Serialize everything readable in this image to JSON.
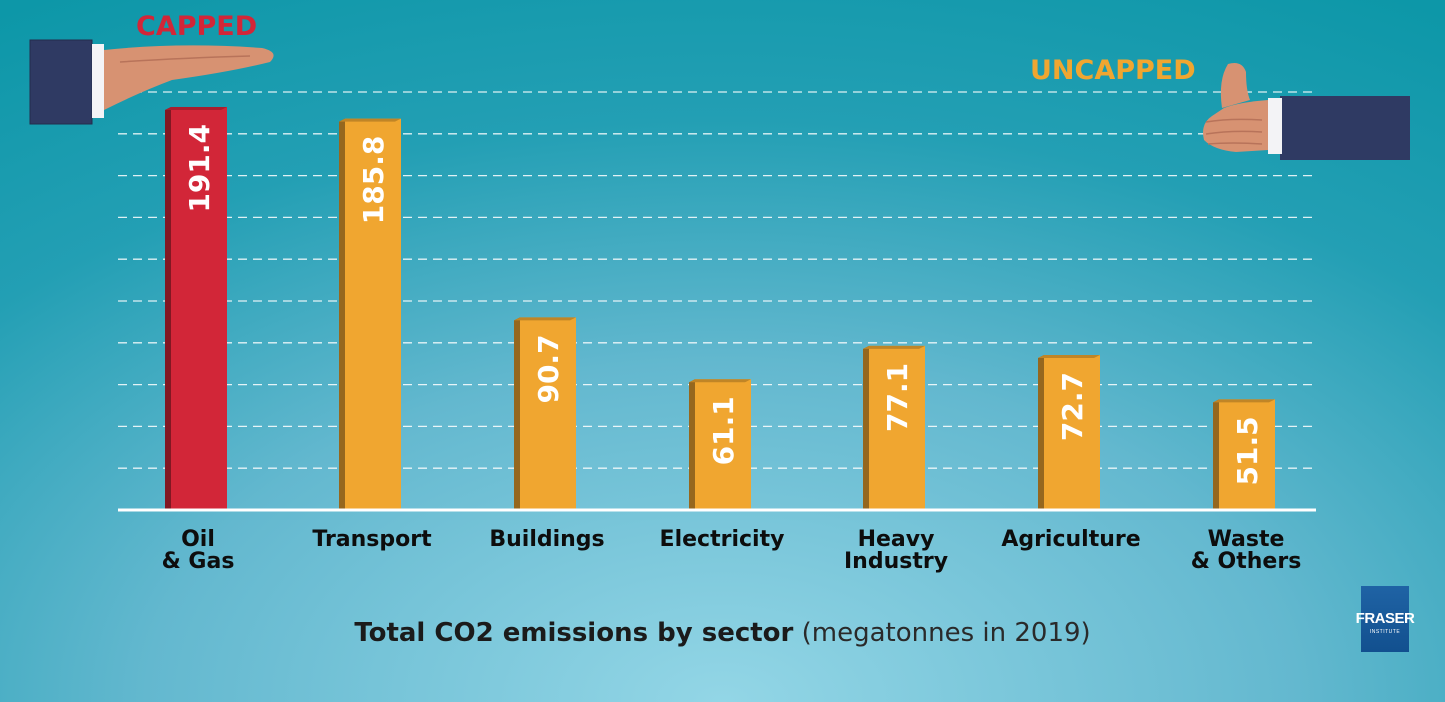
{
  "chart_data": {
    "type": "bar",
    "title": "Total CO2 emissions by sector",
    "subtitle": "(megatonnes in 2019)",
    "categories": [
      [
        "Oil",
        "& Gas"
      ],
      [
        "Transport"
      ],
      [
        "Buildings"
      ],
      [
        "Electricity"
      ],
      [
        "Heavy",
        "Industry"
      ],
      [
        "Agriculture"
      ],
      [
        "Waste",
        "& Others"
      ]
    ],
    "values": [
      191.4,
      185.8,
      90.7,
      61.1,
      77.1,
      72.7,
      51.5
    ],
    "value_labels": [
      "191.4",
      "185.8",
      "90.7",
      "61.1",
      "77.1",
      "72.7",
      "51.5"
    ],
    "bar_colors": [
      "#d22638",
      "#f0a630",
      "#f0a630",
      "#f0a630",
      "#f0a630",
      "#f0a630",
      "#f0a630"
    ],
    "ylim": [
      0,
      200
    ],
    "grid": true,
    "xlabel": "",
    "ylabel": ""
  },
  "annotations": {
    "capped": "CAPPED",
    "uncapped": "UNCAPPED",
    "capped_color": "#d22638",
    "uncapped_color": "#f0a630",
    "left_graphic": "hand-palm-down-icon",
    "right_graphic": "thumbs-up-icon"
  },
  "logo": {
    "main": "FRASER",
    "sub": "INSTITUTE"
  }
}
